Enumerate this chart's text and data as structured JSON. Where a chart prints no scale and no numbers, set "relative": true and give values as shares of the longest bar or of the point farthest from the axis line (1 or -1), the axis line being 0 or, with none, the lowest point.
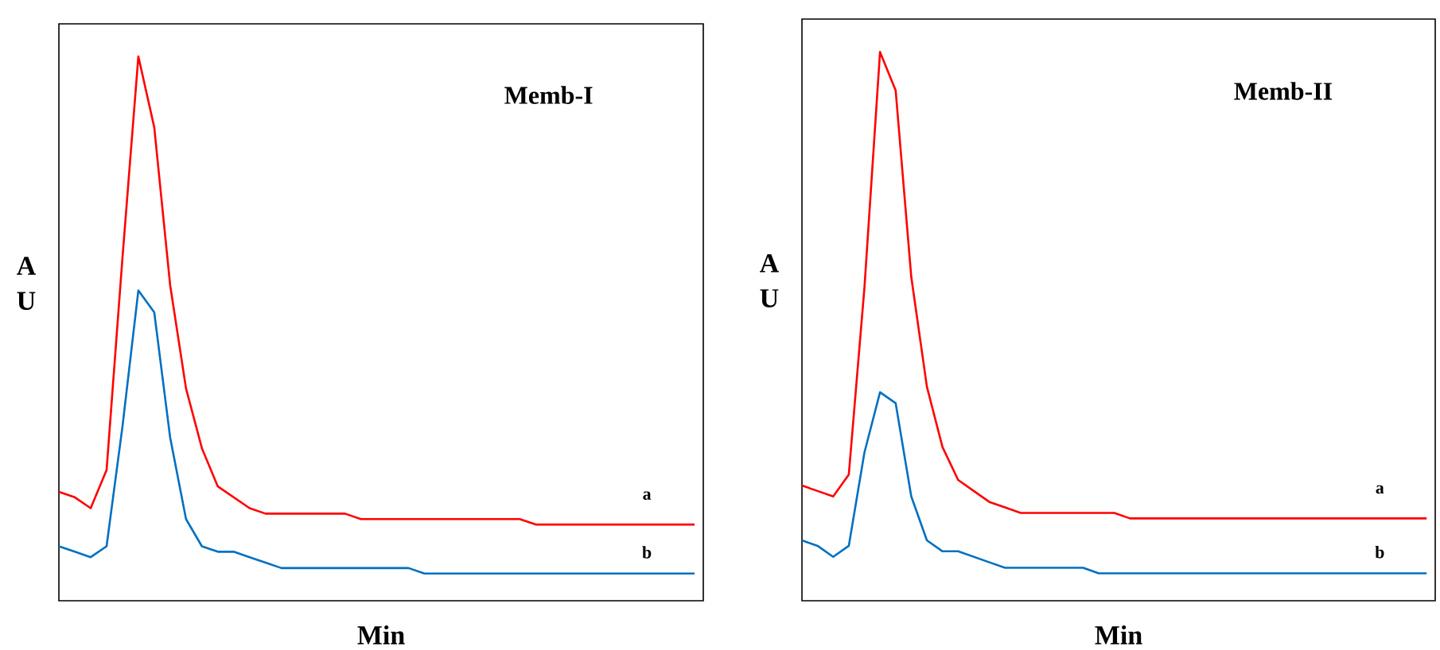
{
  "chart_data": [
    {
      "type": "line",
      "relative": true,
      "tick_labels": false,
      "title": "Memb-I",
      "xlabel": "Min",
      "ylabel": "A U",
      "categories": [
        null,
        null,
        null,
        null,
        null,
        null,
        null,
        null,
        null,
        null,
        null,
        null,
        null,
        null,
        null,
        null,
        null,
        null,
        null,
        null,
        null,
        null,
        null,
        null,
        null,
        null,
        null,
        null,
        null,
        null,
        null,
        null,
        null,
        null,
        null,
        null,
        null,
        null,
        null,
        null,
        null
      ],
      "series": [
        {
          "name": "a",
          "color": "#ff0000",
          "values": [
            0.2,
            0.19,
            0.17,
            0.24,
            0.63,
            1,
            0.87,
            0.58,
            0.39,
            0.28,
            0.21,
            0.19,
            0.17,
            0.16,
            0.16,
            0.16,
            0.16,
            0.16,
            0.16,
            0.15,
            0.15,
            0.15,
            0.15,
            0.15,
            0.15,
            0.15,
            0.15,
            0.15,
            0.15,
            0.15,
            0.14,
            0.14,
            0.14,
            0.14,
            0.14,
            0.14,
            0.14,
            0.14,
            0.14,
            0.14,
            0.14
          ]
        },
        {
          "name": "b",
          "color": "#0070c0",
          "values": [
            0.1,
            0.09,
            0.08,
            0.1,
            0.32,
            0.57,
            0.53,
            0.3,
            0.15,
            0.1,
            0.09,
            0.09,
            0.08,
            0.07,
            0.06,
            0.06,
            0.06,
            0.06,
            0.06,
            0.06,
            0.06,
            0.06,
            0.06,
            0.05,
            0.05,
            0.05,
            0.05,
            0.05,
            0.05,
            0.05,
            0.05,
            0.05,
            0.05,
            0.05,
            0.05,
            0.05,
            0.05,
            0.05,
            0.05,
            0.05,
            0.05
          ]
        }
      ]
    },
    {
      "type": "line",
      "relative": true,
      "tick_labels": false,
      "title": "Memb-II",
      "xlabel": "Min",
      "ylabel": "A U",
      "categories": [
        null,
        null,
        null,
        null,
        null,
        null,
        null,
        null,
        null,
        null,
        null,
        null,
        null,
        null,
        null,
        null,
        null,
        null,
        null,
        null,
        null,
        null,
        null,
        null,
        null,
        null,
        null,
        null,
        null,
        null,
        null,
        null,
        null,
        null,
        null,
        null,
        null,
        null,
        null,
        null,
        null
      ],
      "series": [
        {
          "name": "a",
          "color": "#ff0000",
          "values": [
            0.21,
            0.2,
            0.19,
            0.23,
            0.57,
            1,
            0.93,
            0.59,
            0.39,
            0.28,
            0.22,
            0.2,
            0.18,
            0.17,
            0.16,
            0.16,
            0.16,
            0.16,
            0.16,
            0.16,
            0.16,
            0.15,
            0.15,
            0.15,
            0.15,
            0.15,
            0.15,
            0.15,
            0.15,
            0.15,
            0.15,
            0.15,
            0.15,
            0.15,
            0.15,
            0.15,
            0.15,
            0.15,
            0.15,
            0.15,
            0.15
          ]
        },
        {
          "name": "b",
          "color": "#0070c0",
          "values": [
            0.11,
            0.1,
            0.08,
            0.1,
            0.27,
            0.38,
            0.36,
            0.19,
            0.11,
            0.09,
            0.09,
            0.08,
            0.07,
            0.06,
            0.06,
            0.06,
            0.06,
            0.06,
            0.06,
            0.05,
            0.05,
            0.05,
            0.05,
            0.05,
            0.05,
            0.05,
            0.05,
            0.05,
            0.05,
            0.05,
            0.05,
            0.05,
            0.05,
            0.05,
            0.05,
            0.05,
            0.05,
            0.05,
            0.05,
            0.05,
            0.05
          ]
        }
      ]
    }
  ]
}
